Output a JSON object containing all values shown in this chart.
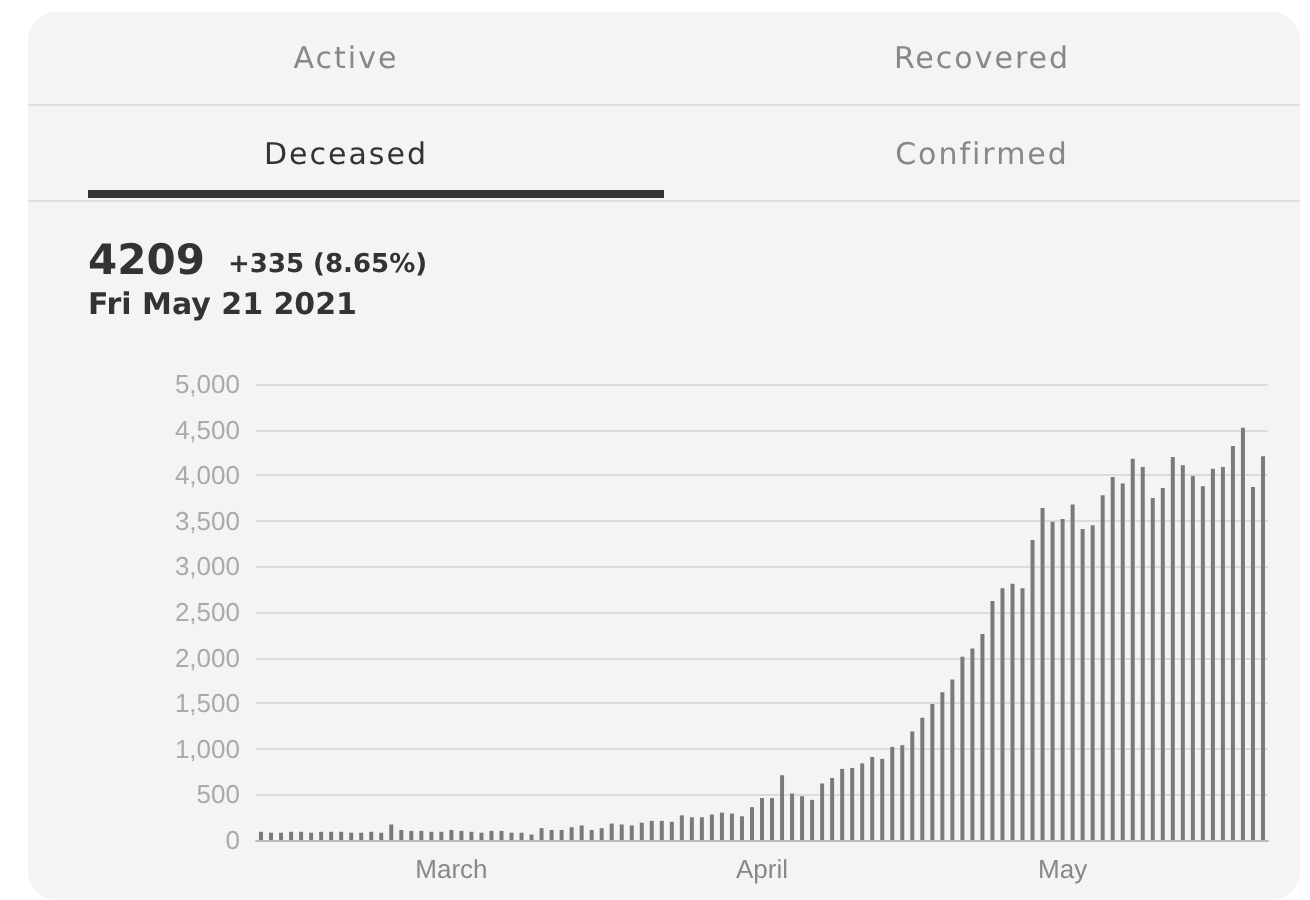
{
  "chart_data": {
    "type": "bar",
    "title": "4209",
    "subtitle": "+335 (8.65%)",
    "annotations": [
      "Active",
      "Recovered",
      "Deceased",
      "Confirmed",
      "Fri May 21 2021"
    ],
    "categories": [
      null,
      null,
      null,
      null,
      null,
      null,
      null,
      null,
      null,
      null,
      null,
      null,
      null,
      null,
      null,
      null,
      null,
      null,
      null,
      "March",
      null,
      null,
      null,
      null,
      null,
      null,
      null,
      null,
      null,
      null,
      null,
      null,
      null,
      null,
      null,
      null,
      null,
      null,
      null,
      null,
      null,
      null,
      null,
      null,
      null,
      null,
      null,
      null,
      null,
      null,
      "April",
      null,
      null,
      null,
      null,
      null,
      null,
      null,
      null,
      null,
      null,
      null,
      null,
      null,
      null,
      null,
      null,
      null,
      null,
      null,
      null,
      null,
      null,
      null,
      null,
      null,
      null,
      null,
      null,
      null,
      "May",
      null,
      null,
      null,
      null,
      null,
      null,
      null,
      null,
      null,
      null,
      null,
      null,
      null,
      null,
      null,
      null,
      null,
      null,
      null,
      null
    ],
    "values": [
      90,
      80,
      80,
      90,
      90,
      80,
      90,
      90,
      90,
      80,
      80,
      90,
      80,
      170,
      110,
      100,
      100,
      90,
      90,
      110,
      100,
      90,
      80,
      100,
      100,
      80,
      80,
      60,
      130,
      110,
      110,
      140,
      160,
      110,
      130,
      180,
      170,
      160,
      190,
      210,
      210,
      200,
      270,
      250,
      250,
      280,
      300,
      290,
      260,
      360,
      460,
      460,
      710,
      510,
      480,
      440,
      620,
      680,
      780,
      790,
      840,
      910,
      890,
      1020,
      1040,
      1190,
      1340,
      1490,
      1620,
      1760,
      2010,
      2100,
      2260,
      2620,
      2760,
      2810,
      2760,
      3290,
      3640,
      3490,
      3520,
      3680,
      3410,
      3450,
      3780,
      3980,
      3910,
      4180,
      4090,
      3750,
      3860,
      4200,
      4110,
      3990,
      3880,
      4070,
      4090,
      4320,
      4520,
      3870,
      4209
    ],
    "color": "#7a7a7a",
    "ylim": [
      0,
      5000
    ],
    "yticks": [
      0,
      500,
      {
        "value": 1000,
        "label": "1,000"
      },
      {
        "value": 1500,
        "label": "1,500"
      },
      {
        "value": 2000,
        "label": "2,000"
      },
      {
        "value": 2500,
        "label": "2,500"
      },
      {
        "value": 3000,
        "label": "3,000"
      },
      {
        "value": 3500,
        "label": "3,500"
      },
      {
        "value": 4000,
        "label": "4,000"
      },
      {
        "value": 4500,
        "label": "4,500"
      },
      {
        "value": 5000,
        "label": "5,000"
      }
    ],
    "grid": "y"
  }
}
